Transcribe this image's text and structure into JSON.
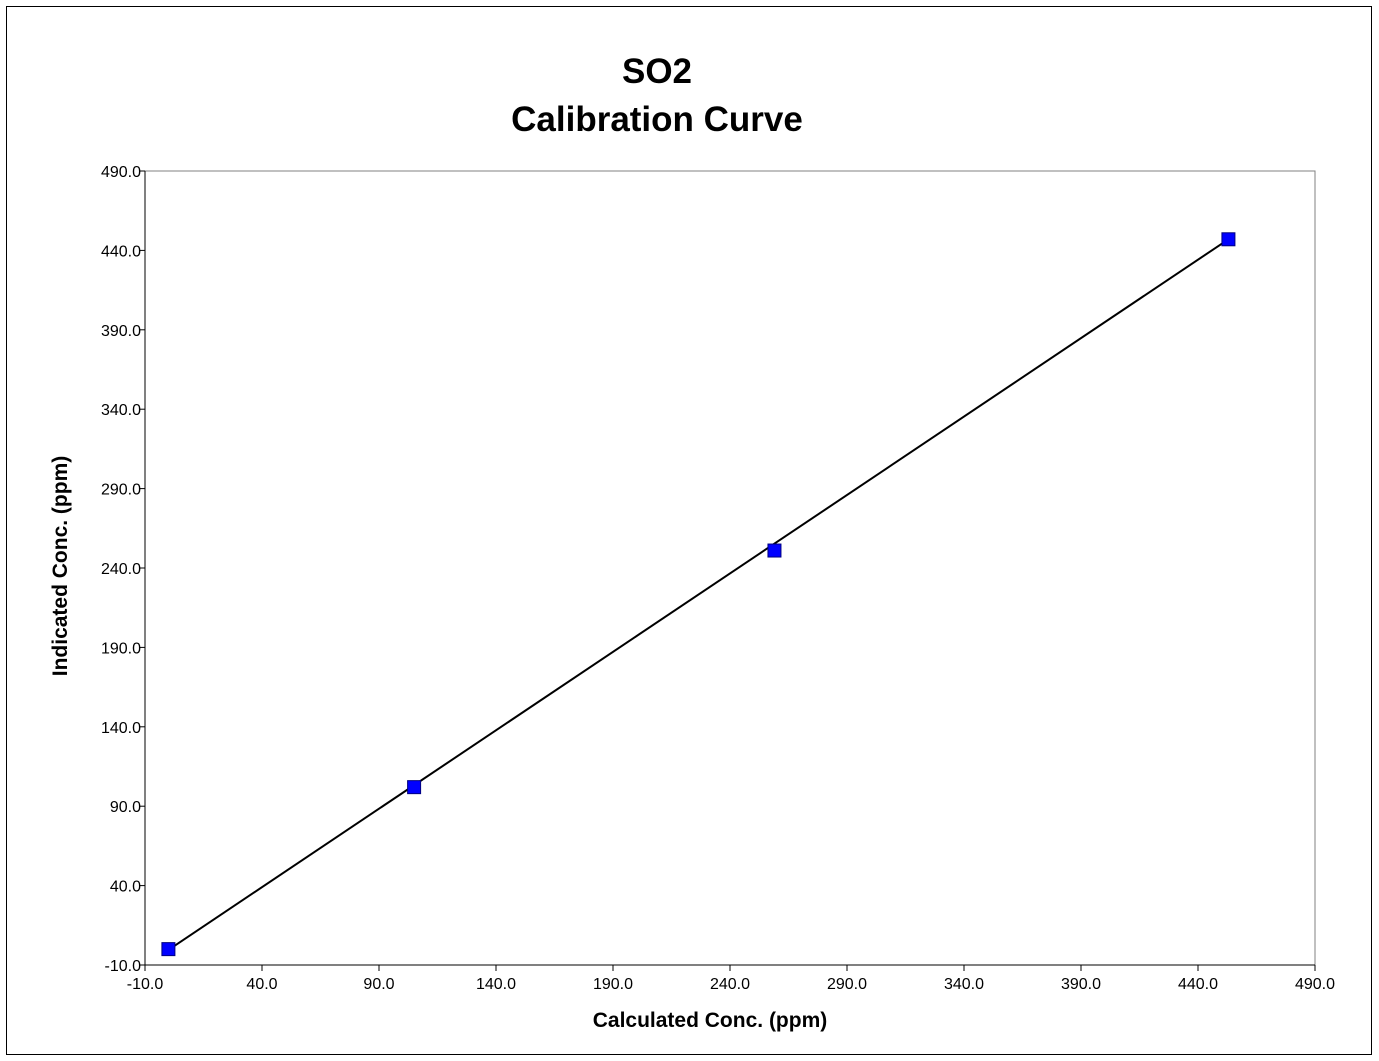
{
  "chart_data": {
    "type": "scatter",
    "title_lines": [
      "SO2",
      "Calibration Curve"
    ],
    "xlabel": "Calculated Conc. (ppm)",
    "ylabel": "Indicated Conc. (ppm)",
    "xlim": [
      -10.0,
      490.0
    ],
    "ylim": [
      -10.0,
      490.0
    ],
    "x_ticks": [
      "-10.0",
      "40.0",
      "90.0",
      "140.0",
      "190.0",
      "240.0",
      "290.0",
      "340.0",
      "390.0",
      "440.0",
      "490.0"
    ],
    "y_ticks": [
      "-10.0",
      "40.0",
      "90.0",
      "140.0",
      "190.0",
      "240.0",
      "290.0",
      "340.0",
      "390.0",
      "440.0",
      "490.0"
    ],
    "grid": false,
    "series": [
      {
        "type": "scatter",
        "marker": "square",
        "color": "#0000FF",
        "points": [
          {
            "x": 0.0,
            "y": 0.0
          },
          {
            "x": 105.0,
            "y": 102.0
          },
          {
            "x": 259.0,
            "y": 251.0
          },
          {
            "x": 453.0,
            "y": 447.0
          }
        ]
      },
      {
        "type": "line",
        "color": "#000000",
        "points": [
          {
            "x": 0.0,
            "y": -0.5
          },
          {
            "x": 453.0,
            "y": 447.0
          }
        ]
      }
    ]
  }
}
